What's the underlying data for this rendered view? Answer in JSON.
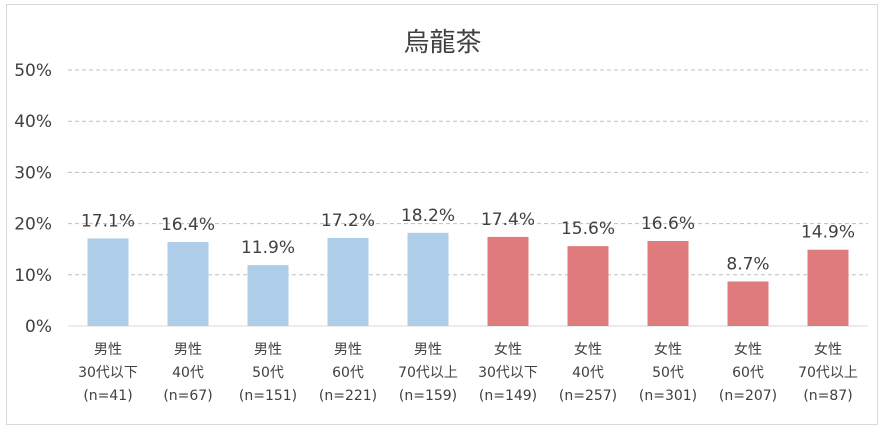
{
  "chart_data": {
    "type": "bar",
    "title": "烏龍茶",
    "ylim": [
      0,
      50
    ],
    "y_ticks": [
      "0%",
      "10%",
      "20%",
      "30%",
      "40%",
      "50%"
    ],
    "grid": true,
    "categories": [
      [
        "男性",
        "30代以下",
        "(n=41)"
      ],
      [
        "男性",
        "40代",
        "(n=67)"
      ],
      [
        "男性",
        "50代",
        "(n=151)"
      ],
      [
        "男性",
        "60代",
        "(n=221)"
      ],
      [
        "男性",
        "70代以上",
        "(n=159)"
      ],
      [
        "女性",
        "30代以下",
        "(n=149)"
      ],
      [
        "女性",
        "40代",
        "(n=257)"
      ],
      [
        "女性",
        "50代",
        "(n=301)"
      ],
      [
        "女性",
        "60代",
        "(n=207)"
      ],
      [
        "女性",
        "70代以上",
        "(n=87)"
      ]
    ],
    "values": [
      17.1,
      16.4,
      11.9,
      17.2,
      18.2,
      17.4,
      15.6,
      16.6,
      8.7,
      14.9
    ],
    "value_labels": [
      "17.1%",
      "16.4%",
      "11.9%",
      "17.2%",
      "18.2%",
      "17.4%",
      "15.6%",
      "16.6%",
      "8.7%",
      "14.9%"
    ],
    "colors": [
      "#aecde8",
      "#aecde8",
      "#aecde8",
      "#aecde8",
      "#aecde8",
      "#e07b7d",
      "#e07b7d",
      "#e07b7d",
      "#e07b7d",
      "#e07b7d"
    ],
    "grid_color": "#bfbfbf"
  }
}
